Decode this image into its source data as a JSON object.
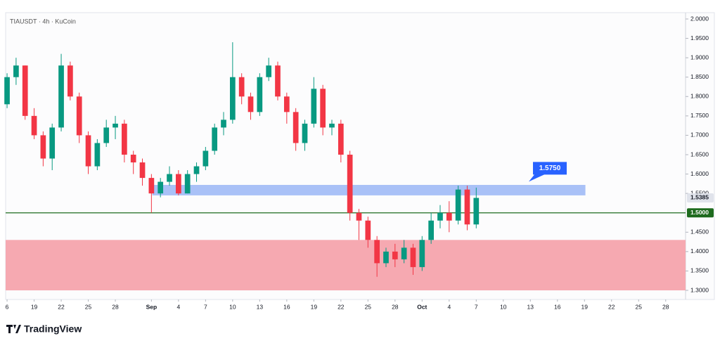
{
  "chart_data": {
    "type": "candlestick",
    "title": "TIAUSDT · 4h · KuCoin",
    "x": [
      0,
      1,
      2,
      3,
      4,
      5,
      6,
      7,
      8,
      9,
      10,
      11,
      12,
      13,
      14,
      15,
      16,
      17,
      18,
      19,
      20,
      21,
      22,
      23,
      24,
      25,
      26,
      27,
      28,
      29,
      30,
      31,
      32,
      33,
      34,
      35,
      36,
      37,
      38,
      39,
      40,
      41,
      42,
      43,
      44,
      45,
      46,
      47,
      48,
      49,
      50,
      51,
      52
    ],
    "open": [
      1.78,
      1.85,
      1.88,
      1.75,
      1.7,
      1.64,
      1.72,
      1.88,
      1.8,
      1.7,
      1.62,
      1.68,
      1.72,
      1.73,
      1.65,
      1.63,
      1.59,
      1.55,
      1.58,
      1.6,
      1.55,
      1.6,
      1.62,
      1.66,
      1.72,
      1.74,
      1.85,
      1.8,
      1.76,
      1.85,
      1.88,
      1.8,
      1.76,
      1.68,
      1.73,
      1.82,
      1.72,
      1.73,
      1.65,
      1.5,
      1.48,
      1.43,
      1.37,
      1.4,
      1.38,
      1.41,
      1.36,
      1.43,
      1.48,
      1.5,
      1.48,
      1.56,
      1.47
    ],
    "high": [
      1.86,
      1.9,
      1.88,
      1.77,
      1.71,
      1.73,
      1.91,
      1.89,
      1.81,
      1.71,
      1.69,
      1.74,
      1.75,
      1.74,
      1.66,
      1.64,
      1.6,
      1.59,
      1.62,
      1.61,
      1.61,
      1.63,
      1.67,
      1.73,
      1.76,
      1.94,
      1.86,
      1.81,
      1.86,
      1.9,
      1.89,
      1.81,
      1.77,
      1.74,
      1.85,
      1.83,
      1.74,
      1.74,
      1.66,
      1.51,
      1.49,
      1.44,
      1.41,
      1.42,
      1.43,
      1.42,
      1.44,
      1.5,
      1.52,
      1.53,
      1.57,
      1.57,
      1.565
    ],
    "low": [
      1.77,
      1.83,
      1.74,
      1.69,
      1.62,
      1.61,
      1.71,
      1.79,
      1.68,
      1.6,
      1.61,
      1.67,
      1.69,
      1.63,
      1.6,
      1.57,
      1.5,
      1.54,
      1.57,
      1.545,
      1.55,
      1.58,
      1.61,
      1.65,
      1.7,
      1.73,
      1.78,
      1.74,
      1.75,
      1.84,
      1.79,
      1.73,
      1.66,
      1.66,
      1.72,
      1.7,
      1.7,
      1.63,
      1.48,
      1.43,
      1.41,
      1.335,
      1.36,
      1.36,
      1.37,
      1.34,
      1.35,
      1.42,
      1.46,
      1.45,
      1.47,
      1.455,
      1.46
    ],
    "close": [
      1.85,
      1.88,
      1.75,
      1.7,
      1.64,
      1.72,
      1.88,
      1.8,
      1.7,
      1.62,
      1.68,
      1.72,
      1.73,
      1.65,
      1.63,
      1.59,
      1.55,
      1.58,
      1.6,
      1.55,
      1.6,
      1.62,
      1.66,
      1.72,
      1.74,
      1.85,
      1.8,
      1.76,
      1.85,
      1.88,
      1.8,
      1.76,
      1.68,
      1.73,
      1.82,
      1.72,
      1.73,
      1.65,
      1.5,
      1.48,
      1.43,
      1.37,
      1.4,
      1.38,
      1.41,
      1.36,
      1.43,
      1.48,
      1.5,
      1.48,
      1.56,
      1.47,
      1.5385
    ],
    "up_color": "#089981",
    "down_color": "#f23645",
    "xlim": [
      -0.16,
      75.2
    ],
    "ylim": [
      1.3,
      2.0
    ],
    "xticks": [
      {
        "value": 0,
        "label": "6"
      },
      {
        "value": 3,
        "label": "19"
      },
      {
        "value": 6,
        "label": "22"
      },
      {
        "value": 9,
        "label": "25"
      },
      {
        "value": 12,
        "label": "28"
      },
      {
        "value": 16,
        "label": "Sep"
      },
      {
        "value": 19,
        "label": "4"
      },
      {
        "value": 22,
        "label": "7"
      },
      {
        "value": 25,
        "label": "10"
      },
      {
        "value": 28,
        "label": "13"
      },
      {
        "value": 31,
        "label": "16"
      },
      {
        "value": 34,
        "label": "19"
      },
      {
        "value": 37,
        "label": "22"
      },
      {
        "value": 40,
        "label": "25"
      },
      {
        "value": 43,
        "label": "28"
      },
      {
        "value": 46,
        "label": "Oct"
      },
      {
        "value": 49,
        "label": "4"
      },
      {
        "value": 52,
        "label": "7"
      },
      {
        "value": 55,
        "label": "10"
      },
      {
        "value": 58,
        "label": "13"
      },
      {
        "value": 61,
        "label": "16"
      },
      {
        "value": 64,
        "label": "19"
      },
      {
        "value": 67,
        "label": "22"
      },
      {
        "value": 70,
        "label": "25"
      },
      {
        "value": 73,
        "label": "28"
      }
    ],
    "yticks": [
      {
        "value": 2.0,
        "label": "2.0000"
      },
      {
        "value": 1.95,
        "label": "1.9500"
      },
      {
        "value": 1.9,
        "label": "1.9000"
      },
      {
        "value": 1.85,
        "label": "1.8500"
      },
      {
        "value": 1.8,
        "label": "1.8000"
      },
      {
        "value": 1.75,
        "label": "1.7500"
      },
      {
        "value": 1.7,
        "label": "1.7000"
      },
      {
        "value": 1.65,
        "label": "1.6500"
      },
      {
        "value": 1.6,
        "label": "1.6000"
      },
      {
        "value": 1.55,
        "label": "1.5500"
      },
      {
        "value": 1.45,
        "label": "1.4500"
      },
      {
        "value": 1.4,
        "label": "1.4000"
      },
      {
        "value": 1.35,
        "label": "1.3500"
      },
      {
        "value": 1.3,
        "label": "1.3000"
      }
    ],
    "zones": [
      {
        "y0": 1.545,
        "y1": 1.572,
        "x0": 16.1,
        "x1": 64.1,
        "color": "#a9c1f7"
      },
      {
        "y0": 1.3,
        "y1": 1.43,
        "x0": -0.16,
        "x1": 75.2,
        "color": "#f6a9b1"
      }
    ],
    "hline": {
      "value": 1.5,
      "label": "1.5000",
      "color": "#1e6b1e"
    },
    "last_price": {
      "value": 1.5385,
      "label": "1.5385"
    },
    "annotation": {
      "value": 1.575,
      "label": "1.5750",
      "color": "#2962ff"
    },
    "brand": "TradingView"
  }
}
